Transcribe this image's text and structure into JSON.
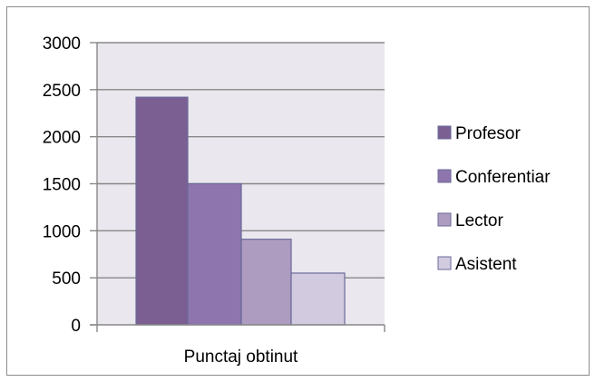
{
  "chart_data": {
    "type": "bar",
    "categories": [
      "Punctaj obtinut"
    ],
    "series": [
      {
        "name": "Profesor",
        "values": [
          2420
        ],
        "color": "#7b5f92"
      },
      {
        "name": "Conferentiar",
        "values": [
          1500
        ],
        "color": "#8f75ad"
      },
      {
        "name": "Lector",
        "values": [
          910
        ],
        "color": "#ad9cc0"
      },
      {
        "name": "Asistent",
        "values": [
          550
        ],
        "color": "#d2cadf"
      }
    ],
    "ylim": [
      0,
      3000
    ],
    "yticks": [
      "0",
      "500",
      "1000",
      "1500",
      "2000",
      "2500",
      "3000"
    ],
    "grid": true,
    "legend": "right",
    "title": "",
    "xlabel": "",
    "ylabel": ""
  },
  "colors": {
    "plot_background": "#eae7ee",
    "gridline": "#888888",
    "bar_border": "#6a6a9a"
  }
}
